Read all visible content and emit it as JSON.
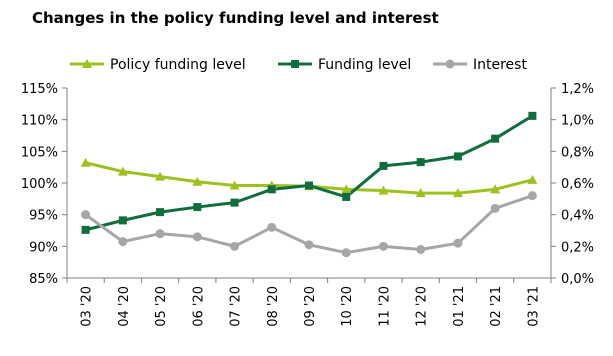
{
  "chart_data": {
    "type": "line",
    "title": "Changes in the policy funding level and interest",
    "categories": [
      "03 '20",
      "04 '20",
      "05 '20",
      "06 '20",
      "07 '20",
      "08 '20",
      "09 '20",
      "10 '20",
      "11 '20",
      "12 '20",
      "01 '21",
      "02 '21",
      "03 '21"
    ],
    "left_axis": {
      "range": [
        85,
        115
      ],
      "ticks": [
        85,
        90,
        95,
        100,
        105,
        110,
        115
      ],
      "tick_labels": [
        "85%",
        "90%",
        "95%",
        "100%",
        "105%",
        "110%",
        "115%"
      ]
    },
    "right_axis": {
      "range": [
        0,
        1.2
      ],
      "ticks": [
        0,
        0.2,
        0.4,
        0.6,
        0.8,
        1.0,
        1.2
      ],
      "tick_labels": [
        "0,0%",
        "0,2%",
        "0,4%",
        "0,6%",
        "0,8%",
        "1,0%",
        "1,2%"
      ]
    },
    "series": [
      {
        "name": "Policy funding level",
        "axis": "left",
        "color": "#9dc11f",
        "marker": "triangle",
        "values": [
          103.2,
          101.8,
          101.0,
          100.2,
          99.6,
          99.6,
          99.5,
          99.0,
          98.8,
          98.4,
          98.4,
          99.0,
          100.5
        ]
      },
      {
        "name": "Funding level",
        "axis": "left",
        "color": "#0f6e3b",
        "marker": "square",
        "values": [
          92.6,
          94.1,
          95.4,
          96.2,
          96.9,
          99.0,
          99.6,
          97.8,
          102.7,
          103.3,
          104.2,
          107.0,
          110.6
        ]
      },
      {
        "name": "Interest",
        "axis": "right",
        "color": "#a6a6a6",
        "marker": "circle",
        "values": [
          0.4,
          0.23,
          0.28,
          0.26,
          0.2,
          0.32,
          0.21,
          0.16,
          0.2,
          0.18,
          0.22,
          0.44,
          0.52
        ]
      }
    ],
    "legend_position": "top",
    "grid": false
  }
}
